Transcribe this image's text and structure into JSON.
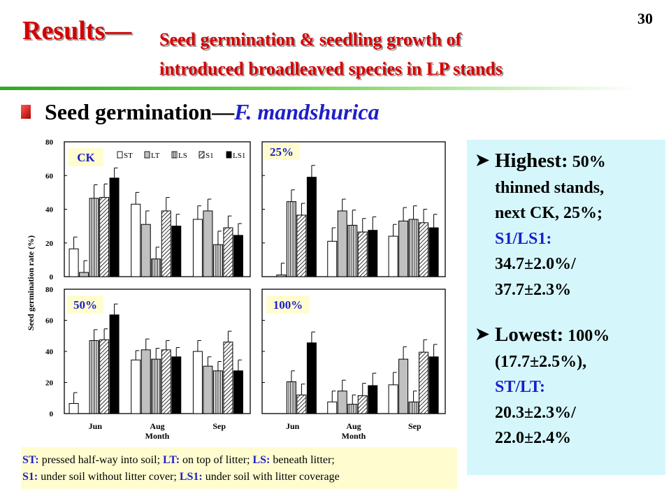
{
  "page": {
    "number": "30"
  },
  "title": {
    "main": "Results—",
    "sub_line1": "Seed germination & seedling growth of",
    "sub_line2": "introduced broadleaved species in LP stands"
  },
  "section": {
    "title_prefix": "Seed germination—",
    "species": "F.  mandshurica"
  },
  "chart_data": {
    "type": "bar",
    "ylabel": "Seed germination rate (%)",
    "xlabel": "Month",
    "categories": [
      "Jun",
      "Aug",
      "Sep"
    ],
    "series_names": [
      "ST",
      "LT",
      "LS",
      "S1",
      "LS1"
    ],
    "ylim": [
      0,
      80
    ],
    "yticks": [
      0,
      20,
      40,
      60,
      80
    ],
    "panels": [
      {
        "label": "CK",
        "series": [
          {
            "name": "ST",
            "values": [
              16.5,
              43,
              34
            ],
            "errors": [
              7,
              7,
              8
            ]
          },
          {
            "name": "LT",
            "values": [
              2.5,
              31,
              39
            ],
            "errors": [
              7,
              8,
              7
            ]
          },
          {
            "name": "LS",
            "values": [
              46.5,
              10.5,
              19
            ],
            "errors": [
              8,
              7,
              8
            ]
          },
          {
            "name": "S1",
            "values": [
              47,
              39,
              29
            ],
            "errors": [
              8,
              8,
              7
            ]
          },
          {
            "name": "LS1",
            "values": [
              58.5,
              30,
              24.5
            ],
            "errors": [
              6,
              7,
              7
            ]
          }
        ]
      },
      {
        "label": "25%",
        "series": [
          {
            "name": "ST",
            "values": [
              0,
              21,
              24
            ],
            "errors": [
              0,
              8,
              7
            ]
          },
          {
            "name": "LT",
            "values": [
              1,
              39,
              33
            ],
            "errors": [
              7,
              7,
              8
            ]
          },
          {
            "name": "LS",
            "values": [
              44.5,
              30.5,
              34
            ],
            "errors": [
              7,
              9,
              8
            ]
          },
          {
            "name": "S1",
            "values": [
              36.5,
              26.5,
              32
            ],
            "errors": [
              7,
              8,
              8
            ]
          },
          {
            "name": "LS1",
            "values": [
              59,
              27.5,
              29
            ],
            "errors": [
              7,
              8,
              8
            ]
          }
        ]
      },
      {
        "label": "50%",
        "series": [
          {
            "name": "ST",
            "values": [
              6.5,
              34.5,
              40
            ],
            "errors": [
              7,
              6,
              7
            ]
          },
          {
            "name": "LT",
            "values": [
              0,
              41,
              30.5
            ],
            "errors": [
              0,
              7,
              6
            ]
          },
          {
            "name": "LS",
            "values": [
              47,
              35,
              27.5
            ],
            "errors": [
              7,
              7,
              6
            ]
          },
          {
            "name": "S1",
            "values": [
              47.5,
              41,
              46
            ],
            "errors": [
              7,
              6,
              7
            ]
          },
          {
            "name": "LS1",
            "values": [
              63.5,
              36.5,
              27.5
            ],
            "errors": [
              7,
              6,
              7
            ]
          }
        ]
      },
      {
        "label": "100%",
        "series": [
          {
            "name": "ST",
            "values": [
              0,
              7.5,
              18.5
            ],
            "errors": [
              0,
              7,
              8
            ]
          },
          {
            "name": "LT",
            "values": [
              0,
              14.5,
              35
            ],
            "errors": [
              0,
              7,
              8
            ]
          },
          {
            "name": "LS",
            "values": [
              20.5,
              6,
              7.5
            ],
            "errors": [
              7,
              6,
              7
            ]
          },
          {
            "name": "S1",
            "values": [
              12,
              11.5,
              39.5
            ],
            "errors": [
              7,
              8,
              8
            ]
          },
          {
            "name": "LS1",
            "values": [
              45.5,
              18,
              36.5
            ],
            "errors": [
              7,
              8,
              8
            ]
          }
        ]
      }
    ]
  },
  "legend_box": {
    "line1": [
      {
        "key": "ST:",
        "text": " pressed half-way into soil; "
      },
      {
        "key": "LT:",
        "text": " on top of litter; "
      },
      {
        "key": "LS:",
        "text": " beneath litter;"
      }
    ],
    "line2": [
      {
        "key": "S1:",
        "text": " under soil without litter cover; "
      },
      {
        "key": "LS1:",
        "text": " under soil with litter coverage"
      }
    ]
  },
  "highlights": {
    "highest": {
      "head": "Highest:",
      "value": " 50%",
      "lines": [
        "thinned stands,",
        "next CK, 25%;"
      ],
      "blue_line": "S1/LS1:",
      "values": [
        "34.7±2.0%/",
        "37.7±2.3%"
      ]
    },
    "lowest": {
      "head": "Lowest:",
      "value": " 100%",
      "lines": [
        "(17.7±2.5%),"
      ],
      "blue_line": "ST/LT:",
      "values": [
        "20.3±2.3%/",
        "22.0±2.4%"
      ]
    }
  }
}
